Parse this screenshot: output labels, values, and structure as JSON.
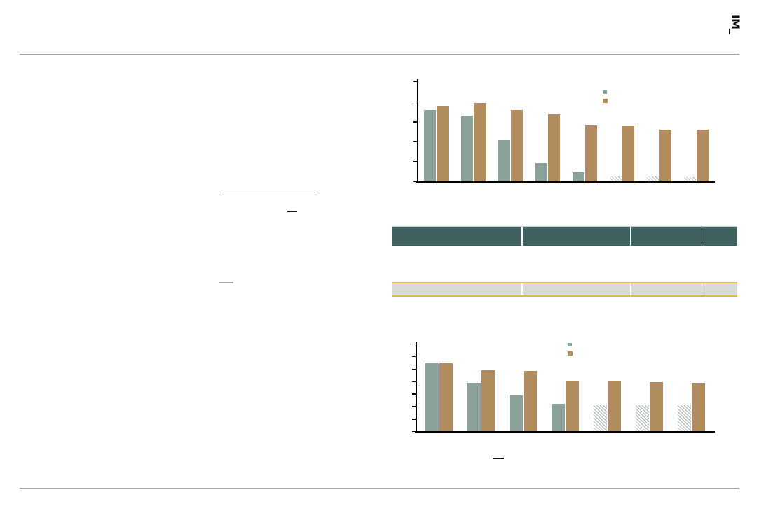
{
  "page": {
    "logo_text": "IM_"
  },
  "colors": {
    "series_green": "#8aa29a",
    "series_brown": "#b18c5c",
    "table_header_bg": "#3f6160",
    "table_highlight_row_bg": "#d9d9d9",
    "accent_gold": "#e0b93f",
    "rule_gray": "#a3a3a3"
  },
  "table": {
    "column_count": 4,
    "header_labels": [
      "",
      "",
      "",
      ""
    ],
    "highlight_row_values": [
      "",
      "",
      "",
      ""
    ]
  },
  "chart_data": [
    {
      "type": "bar",
      "title": "",
      "xlabel": "",
      "ylabel": "",
      "group_count": 8,
      "series": [
        {
          "name": "green-series",
          "color": "#8aa29a",
          "values": [
            71,
            66,
            41,
            18,
            9,
            5,
            5,
            4
          ],
          "hatched_from_index": 5
        },
        {
          "name": "brown-series",
          "color": "#b18c5c",
          "values": [
            75,
            78,
            71,
            67,
            56,
            55,
            52,
            52
          ]
        }
      ],
      "ylim": [
        0,
        100
      ],
      "y_tick_count": 6,
      "grid": false,
      "axis_tick_labels_visible": false,
      "legend_position": "top-right",
      "legend_labels": [
        "",
        ""
      ]
    },
    {
      "type": "bar",
      "title": "",
      "xlabel": "",
      "ylabel": "",
      "group_count": 7,
      "series": [
        {
          "name": "green-series",
          "color": "#8aa29a",
          "values": [
            78,
            55,
            41,
            31,
            30,
            30,
            30
          ],
          "hatched_from_index": 4
        },
        {
          "name": "brown-series",
          "color": "#b18c5c",
          "values": [
            78,
            70,
            69,
            58,
            58,
            56,
            55
          ]
        }
      ],
      "ylim": [
        0,
        100
      ],
      "y_tick_count": 8,
      "grid": false,
      "axis_tick_labels_visible": false,
      "legend_position": "top-right",
      "legend_labels": [
        "",
        ""
      ]
    }
  ]
}
